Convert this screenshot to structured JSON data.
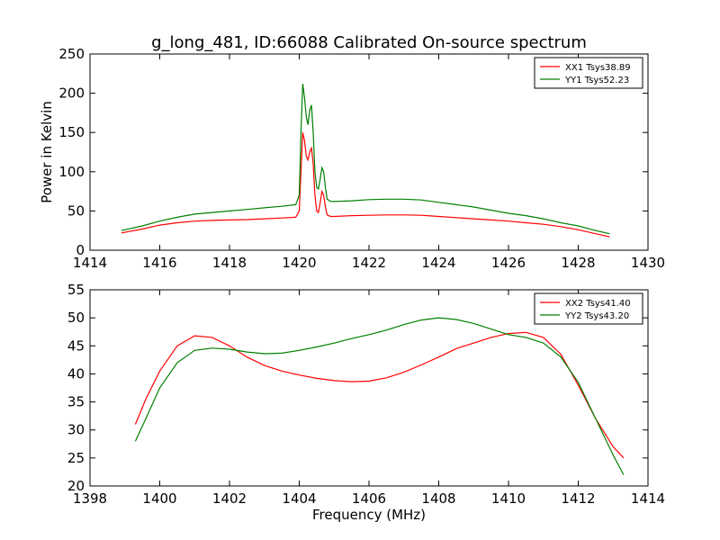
{
  "figure": {
    "title": "g_long_481, ID:66088 Calibrated On-source spectrum"
  },
  "chart_data": [
    {
      "type": "line",
      "title": "g_long_481, ID:66088 Calibrated On-source spectrum",
      "xlabel": "",
      "ylabel": "Power in Kelvin",
      "xlim": [
        1414,
        1430
      ],
      "ylim": [
        0,
        250
      ],
      "xticks": [
        "1414",
        "1416",
        "1418",
        "1420",
        "1422",
        "1424",
        "1426",
        "1428",
        "1430"
      ],
      "yticks": [
        "0",
        "50",
        "100",
        "150",
        "200",
        "250"
      ],
      "grid": false,
      "legend_position": "top-right",
      "series": [
        {
          "name": "XX1 Tsys38.89",
          "color": "#ff0000",
          "x": [
            1414.9,
            1415.5,
            1416.0,
            1416.5,
            1417.0,
            1417.5,
            1418.0,
            1418.5,
            1419.0,
            1419.5,
            1419.9,
            1420.0,
            1420.05,
            1420.1,
            1420.15,
            1420.2,
            1420.25,
            1420.3,
            1420.35,
            1420.4,
            1420.45,
            1420.5,
            1420.55,
            1420.6,
            1420.65,
            1420.7,
            1420.75,
            1420.8,
            1420.9,
            1421.0,
            1421.5,
            1422.0,
            1422.5,
            1423.0,
            1423.5,
            1424.0,
            1424.5,
            1425.0,
            1425.5,
            1426.0,
            1426.5,
            1427.0,
            1427.5,
            1428.0,
            1428.5,
            1428.9
          ],
          "y": [
            22,
            27,
            32,
            35,
            37,
            38,
            38.5,
            39,
            40,
            41,
            42,
            50,
            100,
            150,
            140,
            120,
            115,
            125,
            130,
            110,
            70,
            50,
            48,
            60,
            75,
            70,
            55,
            45,
            43,
            43,
            44,
            44.5,
            45,
            45,
            44.5,
            43,
            41.5,
            40,
            38.5,
            37,
            35,
            33,
            30,
            26,
            21,
            17
          ]
        },
        {
          "name": "YY1 Tsys52.23",
          "color": "#008000",
          "x": [
            1414.9,
            1415.5,
            1416.0,
            1416.5,
            1417.0,
            1417.5,
            1418.0,
            1418.5,
            1419.0,
            1419.5,
            1419.9,
            1420.0,
            1420.05,
            1420.1,
            1420.15,
            1420.2,
            1420.25,
            1420.3,
            1420.35,
            1420.4,
            1420.45,
            1420.5,
            1420.55,
            1420.6,
            1420.65,
            1420.7,
            1420.75,
            1420.8,
            1420.9,
            1421.0,
            1421.5,
            1422.0,
            1422.5,
            1423.0,
            1423.5,
            1424.0,
            1424.5,
            1425.0,
            1425.5,
            1426.0,
            1426.5,
            1427.0,
            1427.5,
            1428.0,
            1428.5,
            1428.9
          ],
          "y": [
            25,
            31,
            37,
            42,
            46,
            48,
            50,
            52,
            54,
            56,
            58,
            70,
            150,
            212,
            195,
            170,
            160,
            178,
            185,
            150,
            100,
            80,
            78,
            90,
            105,
            100,
            80,
            65,
            62,
            62,
            63,
            64.5,
            65,
            65,
            64,
            61,
            58,
            55,
            51,
            47,
            44,
            40,
            35,
            31,
            25,
            21
          ]
        }
      ]
    },
    {
      "type": "line",
      "title": "",
      "xlabel": "Frequency (MHz)",
      "ylabel": "",
      "xlim": [
        1398,
        1414
      ],
      "ylim": [
        20,
        55
      ],
      "xticks": [
        "1398",
        "1400",
        "1402",
        "1404",
        "1406",
        "1408",
        "1410",
        "1412",
        "1414"
      ],
      "yticks": [
        "20",
        "25",
        "30",
        "35",
        "40",
        "45",
        "50",
        "55"
      ],
      "grid": false,
      "legend_position": "top-right",
      "series": [
        {
          "name": "XX2 Tsys41.40",
          "color": "#ff0000",
          "x": [
            1399.3,
            1399.6,
            1400.0,
            1400.5,
            1401.0,
            1401.5,
            1402.0,
            1402.5,
            1403.0,
            1403.5,
            1404.0,
            1404.5,
            1405.0,
            1405.5,
            1406.0,
            1406.5,
            1407.0,
            1407.5,
            1408.0,
            1408.5,
            1409.0,
            1409.5,
            1410.0,
            1410.5,
            1411.0,
            1411.5,
            1412.0,
            1412.5,
            1413.0,
            1413.3
          ],
          "y": [
            31,
            35.5,
            40.5,
            45,
            46.8,
            46.5,
            45,
            43,
            41.5,
            40.5,
            39.8,
            39.2,
            38.8,
            38.6,
            38.7,
            39.3,
            40.3,
            41.6,
            43,
            44.5,
            45.5,
            46.5,
            47.2,
            47.4,
            46.5,
            43.5,
            38,
            32,
            27,
            25
          ]
        },
        {
          "name": "YY2 Tsys43.20",
          "color": "#008000",
          "x": [
            1399.3,
            1399.6,
            1400.0,
            1400.5,
            1401.0,
            1401.5,
            1402.0,
            1402.5,
            1403.0,
            1403.5,
            1404.0,
            1404.5,
            1405.0,
            1405.5,
            1406.0,
            1406.5,
            1407.0,
            1407.5,
            1408.0,
            1408.5,
            1409.0,
            1409.5,
            1410.0,
            1410.5,
            1411.0,
            1411.5,
            1412.0,
            1412.5,
            1413.0,
            1413.3
          ],
          "y": [
            28,
            32,
            37.5,
            42,
            44.2,
            44.6,
            44.4,
            43.9,
            43.6,
            43.7,
            44.2,
            44.8,
            45.5,
            46.3,
            47.0,
            47.8,
            48.8,
            49.6,
            50.0,
            49.7,
            49.0,
            48.0,
            47.0,
            46.5,
            45.5,
            43,
            38.5,
            32,
            25.5,
            22
          ]
        }
      ]
    }
  ]
}
